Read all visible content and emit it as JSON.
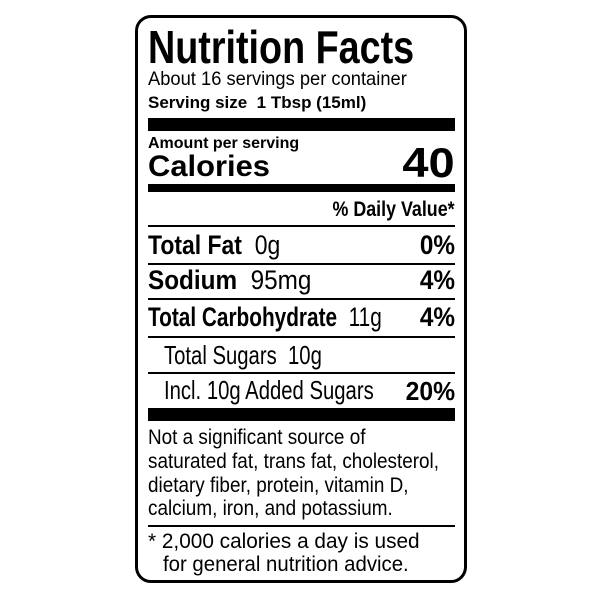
{
  "title": "Nutrition Facts",
  "servings_per_container": "About 16 servings per container",
  "serving_size": {
    "label": "Serving size",
    "value": "1 Tbsp (15ml)"
  },
  "amount_per_serving": "Amount per serving",
  "calories": {
    "label": "Calories",
    "value": "40"
  },
  "daily_value_header": "% Daily Value*",
  "nutrients": [
    {
      "name": "Total Fat",
      "amount": "0g",
      "dv": "0%"
    },
    {
      "name": "Sodium",
      "amount": "95mg",
      "dv": "4%"
    },
    {
      "name": "Total Carbohydrate",
      "amount": "11g",
      "dv": "4%"
    },
    {
      "name": "Total Sugars",
      "amount": "10g",
      "dv": ""
    },
    {
      "name": "Incl. 10g Added Sugars",
      "amount": "",
      "dv": "20%"
    }
  ],
  "not_significant": [
    "Not a significant source of",
    "saturated fat, trans fat, cholesterol,",
    "dietary fiber, protein, vitamin D,",
    "calcium, iron, and potassium."
  ],
  "footnote": [
    "* 2,000 calories a day is used",
    "for general nutrition advice."
  ]
}
